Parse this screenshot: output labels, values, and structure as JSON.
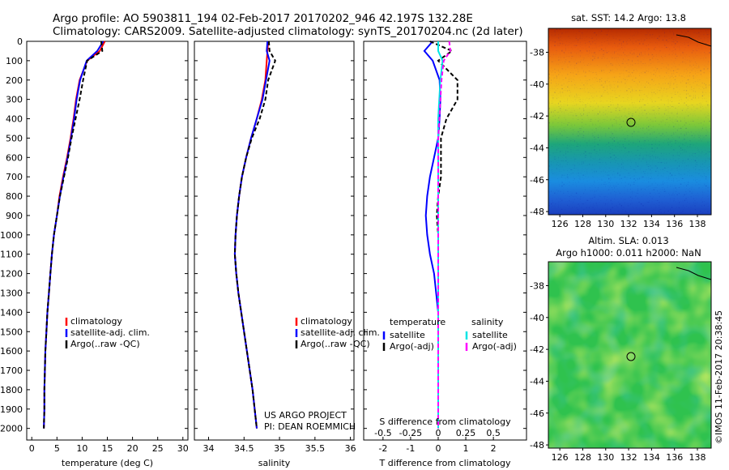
{
  "header": {
    "title_line1": "Argo profile: AO 5903811_194 02-Feb-2017 20170202_946 42.197S 132.28E",
    "title_line2": "Climatology: CARS2009. Satellite-adjusted climatology: synTS_20170204.nc (2d later)"
  },
  "colors": {
    "clim": "#ff0000",
    "sat": "#0000ff",
    "argo": "#000000",
    "sat_salt": "#00e5e5",
    "argo_salt": "#ff00ff"
  },
  "depth_ticks": [
    "0",
    "100",
    "200",
    "300",
    "400",
    "500",
    "600",
    "700",
    "800",
    "900",
    "1000",
    "1100",
    "1200",
    "1300",
    "1400",
    "1500",
    "1600",
    "1700",
    "1800",
    "1900",
    "2000"
  ],
  "panel_temp": {
    "xlabel": "temperature (deg C)",
    "xticks": [
      "0",
      "5",
      "10",
      "15",
      "20",
      "25",
      "30"
    ],
    "legend": [
      "climatology",
      "satellite-adj. clim.",
      "Argo(..raw -QC)"
    ]
  },
  "panel_sal": {
    "xlabel": "salinity",
    "xticks": [
      "34",
      "34.5",
      "35",
      "35.5",
      "36"
    ],
    "legend": [
      "climatology",
      "satellite-adj. clim.",
      "Argo(..raw -QC)"
    ],
    "credit_line1": "US ARGO PROJECT",
    "credit_line2": "PI: DEAN ROEMMICH"
  },
  "panel_diff": {
    "xlabel": "T difference from climatology",
    "top_label": "S difference from climatology",
    "xticks_t": [
      "-2",
      "-1",
      "0",
      "1",
      "2"
    ],
    "xticks_s": [
      "-0.5",
      "-0.25",
      "0",
      "0.25",
      "0.5"
    ],
    "legend_t_head": "temperature",
    "legend_s_head": "salinity",
    "legend_t": [
      "satellite",
      "Argo(-adj)"
    ],
    "legend_s": [
      "satellite",
      "Argo(-adj)"
    ]
  },
  "map_sst": {
    "title": "sat. SST: 14.2  Argo: 13.8",
    "yticks": [
      "-38",
      "-40",
      "-42",
      "-44",
      "-46",
      "-48"
    ],
    "xticks": [
      "126",
      "128",
      "130",
      "132",
      "134",
      "136",
      "138"
    ]
  },
  "map_sla": {
    "title_line1": "Altim. SLA: 0.013",
    "title_line2": "Argo h1000: 0.011 h2000: NaN",
    "yticks": [
      "-38",
      "-40",
      "-42",
      "-44",
      "-46",
      "-48"
    ],
    "xticks": [
      "126",
      "128",
      "130",
      "132",
      "134",
      "136",
      "138"
    ]
  },
  "credit": "©IMOS 11-Feb-2017 20:38:45",
  "chart_data": [
    {
      "type": "line",
      "panel": "temperature profile",
      "xlabel": "temperature (deg C)",
      "ylabel": "",
      "xlim": [
        -1,
        31
      ],
      "ylim": [
        2060,
        0
      ],
      "series": [
        {
          "name": "climatology",
          "x": [
            14.5,
            13.5,
            11.0,
            9.5,
            8.8,
            8.3,
            7.7,
            7.0,
            6.2,
            5.5,
            5.0,
            4.4,
            4.0,
            3.7,
            3.4,
            3.1,
            2.9,
            2.7,
            2.6,
            2.5,
            2.5,
            2.4
          ],
          "y": [
            0,
            50,
            100,
            200,
            300,
            400,
            500,
            600,
            700,
            800,
            900,
            1000,
            1100,
            1200,
            1300,
            1400,
            1500,
            1600,
            1700,
            1800,
            1900,
            2000
          ]
        },
        {
          "name": "satellite-adj. clim.",
          "x": [
            14.2,
            13.0,
            10.9,
            9.6,
            8.9,
            8.4,
            7.8,
            7.1,
            6.3,
            5.6,
            5.0,
            4.4,
            4.0,
            3.7,
            3.4,
            3.1,
            2.9,
            2.7,
            2.6,
            2.5,
            2.5,
            2.4
          ],
          "y": [
            0,
            50,
            100,
            200,
            300,
            400,
            500,
            600,
            700,
            800,
            900,
            1000,
            1100,
            1200,
            1300,
            1400,
            1500,
            1600,
            1700,
            1800,
            1900,
            2000
          ]
        },
        {
          "name": "Argo(..raw -QC)",
          "x": [
            13.8,
            14.0,
            11.0,
            10.2,
            9.5,
            8.7,
            7.9,
            7.2,
            6.4,
            5.6,
            5.0,
            4.4,
            4.0,
            3.7,
            3.4,
            3.1,
            2.9,
            2.7,
            2.6,
            2.5,
            2.5,
            2.4
          ],
          "y": [
            0,
            50,
            100,
            200,
            300,
            400,
            500,
            600,
            700,
            800,
            900,
            1000,
            1100,
            1200,
            1300,
            1400,
            1500,
            1600,
            1700,
            1800,
            1900,
            2000
          ]
        }
      ]
    },
    {
      "type": "line",
      "panel": "salinity profile",
      "xlabel": "salinity",
      "ylabel": "",
      "xlim": [
        33.8,
        36.05
      ],
      "ylim": [
        2060,
        0
      ],
      "series": [
        {
          "name": "climatology",
          "x": [
            34.84,
            34.83,
            34.82,
            34.8,
            34.75,
            34.68,
            34.6,
            34.53,
            34.47,
            34.43,
            34.4,
            34.38,
            34.37,
            34.39,
            34.42,
            34.46,
            34.5,
            34.54,
            34.58,
            34.62,
            34.65,
            34.68
          ],
          "y": [
            0,
            50,
            100,
            200,
            300,
            400,
            500,
            600,
            700,
            800,
            900,
            1000,
            1100,
            1200,
            1300,
            1400,
            1500,
            1600,
            1700,
            1800,
            1900,
            2000
          ]
        },
        {
          "name": "satellite-adj. clim.",
          "x": [
            34.83,
            34.82,
            34.86,
            34.81,
            34.76,
            34.68,
            34.6,
            34.53,
            34.47,
            34.43,
            34.4,
            34.38,
            34.37,
            34.39,
            34.42,
            34.46,
            34.5,
            34.54,
            34.58,
            34.62,
            34.65,
            34.68
          ],
          "y": [
            0,
            50,
            100,
            200,
            300,
            400,
            500,
            600,
            700,
            800,
            900,
            1000,
            1100,
            1200,
            1300,
            1400,
            1500,
            1600,
            1700,
            1800,
            1900,
            2000
          ]
        },
        {
          "name": "Argo(..raw -QC)",
          "x": [
            34.85,
            34.86,
            34.94,
            34.84,
            34.8,
            34.72,
            34.61,
            34.53,
            34.47,
            34.43,
            34.4,
            34.38,
            34.37,
            34.39,
            34.42,
            34.46,
            34.5,
            34.54,
            34.58,
            34.62,
            34.65,
            34.68
          ],
          "y": [
            0,
            50,
            100,
            200,
            300,
            400,
            500,
            600,
            700,
            800,
            900,
            1000,
            1100,
            1200,
            1300,
            1400,
            1500,
            1600,
            1700,
            1800,
            1900,
            2000
          ]
        }
      ]
    },
    {
      "type": "line",
      "panel": "difference from climatology",
      "xlabel": "T difference from climatology",
      "x2label": "S difference from climatology",
      "xlim": [
        -2.7,
        3.2
      ],
      "x2lim": [
        -0.675,
        0.8
      ],
      "ylim": [
        2060,
        0
      ],
      "series": [
        {
          "name": "temperature satellite",
          "axis": "T",
          "x": [
            -0.2,
            -0.5,
            -0.2,
            0.05,
            0.08,
            0.05,
            0,
            -0.15,
            -0.3,
            -0.4,
            -0.45,
            -0.4,
            -0.3,
            -0.15,
            0,
            0,
            0,
            0,
            0,
            0,
            0
          ],
          "y": [
            0,
            50,
            100,
            200,
            300,
            400,
            500,
            600,
            700,
            800,
            900,
            1000,
            1100,
            1200,
            1400,
            1500,
            1600,
            1700,
            1800,
            1900,
            2000
          ]
        },
        {
          "name": "temperature Argo(-adj)",
          "axis": "T",
          "x": [
            -0.3,
            0.5,
            0,
            0.7,
            0.7,
            0.3,
            0.1,
            0.1,
            0.1,
            0.0,
            -0.05,
            0,
            0,
            0,
            0,
            0,
            0,
            0,
            0,
            0,
            0
          ],
          "y": [
            0,
            50,
            100,
            200,
            300,
            400,
            500,
            600,
            700,
            800,
            900,
            1000,
            1100,
            1200,
            1400,
            1500,
            1600,
            1700,
            1800,
            1900,
            2000
          ]
        },
        {
          "name": "salinity satellite",
          "axis": "S",
          "x": [
            0,
            0,
            0.04,
            0.02,
            0.01,
            0.0,
            0.0,
            0.0,
            0.0,
            0.0,
            0.0,
            0,
            0,
            0,
            0,
            0,
            0,
            0,
            0,
            0,
            0
          ],
          "y": [
            0,
            50,
            100,
            200,
            300,
            400,
            500,
            600,
            700,
            800,
            900,
            1000,
            1100,
            1200,
            1400,
            1500,
            1600,
            1700,
            1800,
            1900,
            2000
          ]
        },
        {
          "name": "salinity Argo(-adj)",
          "axis": "S",
          "x": [
            0.1,
            0.11,
            0.05,
            0.03,
            0.02,
            0.01,
            0.0,
            0.0,
            0.0,
            0.0,
            0.0,
            0,
            0,
            0,
            0,
            0,
            0,
            0,
            0,
            0,
            0
          ],
          "y": [
            0,
            50,
            100,
            200,
            300,
            400,
            500,
            600,
            700,
            800,
            900,
            1000,
            1100,
            1200,
            1400,
            1500,
            1600,
            1700,
            1800,
            1900,
            2000
          ]
        }
      ]
    },
    {
      "type": "heatmap",
      "panel": "satellite SST map",
      "title": "sat. SST: 14.2  Argo: 13.8",
      "xlim": [
        125,
        139.2
      ],
      "ylim": [
        -48.2,
        -36.5
      ],
      "argo_position": [
        132.28,
        -42.197
      ],
      "gradient_top_to_bottom": [
        "#b52a00",
        "#e85b0e",
        "#f6a417",
        "#f4df1f",
        "#7bc83a",
        "#20a47d",
        "#1896b2",
        "#1a8de0",
        "#1f5fd3",
        "#1b3fbf"
      ]
    },
    {
      "type": "heatmap",
      "panel": "altimeter SLA map",
      "title": "Altim. SLA: 0.013",
      "xlim": [
        125,
        139.2
      ],
      "ylim": [
        -48.2,
        -36.5
      ],
      "argo_position": [
        132.28,
        -42.197
      ]
    }
  ]
}
